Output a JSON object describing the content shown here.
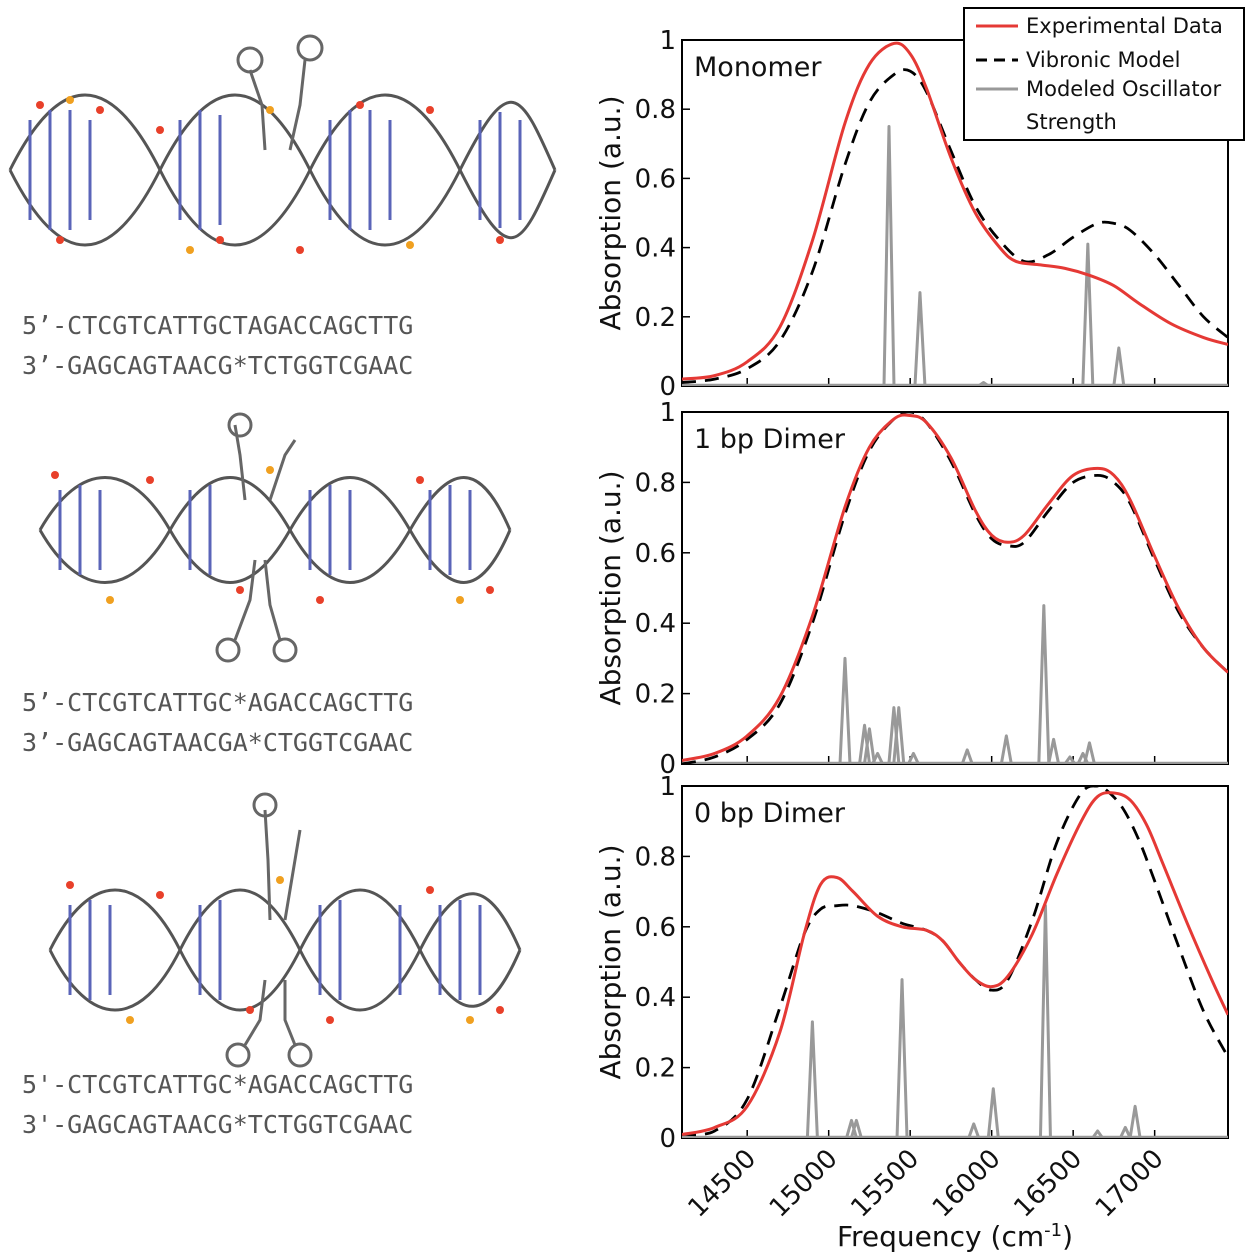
{
  "sequences": [
    {
      "line1": "5’-CTCGTCATTGCTAGACCAGCTTG",
      "line2": "3’-GAGCAGTAACG*TCTGGTCGAAC"
    },
    {
      "line1": "5’-CTCGTCATTGC*AGACCAGCTTG",
      "line2": "3’-GAGCAGTAACGA*CTGGTCGAAC"
    },
    {
      "line1": "5'-CTCGTCATTGC*AGACCAGCTTG",
      "line2": "3'-GAGCAGTAACG*TCTGGTCGAAC"
    }
  ],
  "legend": {
    "experimental": "Experimental Data",
    "vibronic": "Vibronic Model",
    "oscillator_line1": "Modeled Oscillator",
    "oscillator_line2": "Strength"
  },
  "colors": {
    "experimental": "#e53935",
    "vibronic": "#000000",
    "oscillator": "#999999"
  },
  "chart_data": {
    "type": "line",
    "xlabel_main": "Frequency (cm",
    "xlabel_sup": "-1",
    "xlabel_end": ")",
    "ylabel": "Absorption (a.u.)",
    "xlim": [
      14100,
      17450
    ],
    "ylim": [
      0,
      1.0
    ],
    "x_ticks": [
      14500,
      15000,
      15500,
      16000,
      16500,
      17000
    ],
    "x_tick_labels": [
      "14500",
      "15000",
      "15500",
      "16000",
      "16500",
      "17000"
    ],
    "y_ticks": [
      0,
      0.2,
      0.4,
      0.6,
      0.8,
      1
    ],
    "y_tick_labels": [
      "0",
      "0.2",
      "0.4",
      "0.6",
      "0.8",
      "1"
    ],
    "panels": [
      {
        "label": "Monomer",
        "series": [
          {
            "name": "Experimental Data",
            "x": [
              14100,
              14300,
              14500,
              14700,
              14900,
              15100,
              15250,
              15400,
              15500,
              15600,
              15750,
              15900,
              16050,
              16150,
              16300,
              16450,
              16600,
              16750,
              16900,
              17100,
              17300,
              17450
            ],
            "y": [
              0.02,
              0.03,
              0.07,
              0.17,
              0.42,
              0.76,
              0.93,
              0.99,
              0.96,
              0.86,
              0.66,
              0.5,
              0.4,
              0.36,
              0.35,
              0.34,
              0.32,
              0.29,
              0.24,
              0.18,
              0.14,
              0.12
            ]
          },
          {
            "name": "Vibronic Model",
            "x": [
              14100,
              14300,
              14500,
              14700,
              14900,
              15100,
              15250,
              15400,
              15500,
              15600,
              15750,
              15900,
              16050,
              16200,
              16350,
              16500,
              16650,
              16750,
              16850,
              17000,
              17150,
              17300,
              17450
            ],
            "y": [
              0.01,
              0.02,
              0.05,
              0.13,
              0.33,
              0.64,
              0.82,
              0.9,
              0.91,
              0.85,
              0.68,
              0.52,
              0.42,
              0.36,
              0.38,
              0.43,
              0.47,
              0.47,
              0.45,
              0.38,
              0.29,
              0.2,
              0.14
            ]
          },
          {
            "name": "Modeled Oscillator Strength",
            "type": "stick",
            "x": [
              15370,
              15560,
              15950,
              16590,
              16780
            ],
            "y": [
              0.75,
              0.27,
              0.01,
              0.41,
              0.11
            ]
          }
        ]
      },
      {
        "label": "1 bp Dimer",
        "series": [
          {
            "name": "Experimental Data",
            "x": [
              14100,
              14300,
              14500,
              14700,
              14900,
              15100,
              15250,
              15400,
              15500,
              15600,
              15750,
              15900,
              16000,
              16100,
              16200,
              16350,
              16500,
              16650,
              16750,
              16850,
              17000,
              17150,
              17300,
              17450
            ],
            "y": [
              0.01,
              0.03,
              0.08,
              0.19,
              0.42,
              0.73,
              0.9,
              0.98,
              0.99,
              0.97,
              0.87,
              0.72,
              0.65,
              0.63,
              0.65,
              0.74,
              0.82,
              0.84,
              0.82,
              0.75,
              0.59,
              0.44,
              0.33,
              0.26
            ]
          },
          {
            "name": "Vibronic Model",
            "x": [
              14100,
              14300,
              14500,
              14700,
              14900,
              15100,
              15250,
              15400,
              15500,
              15600,
              15750,
              15900,
              16000,
              16100,
              16200,
              16350,
              16500,
              16650,
              16750,
              16850,
              17000,
              17150,
              17300,
              17450
            ],
            "y": [
              0.0,
              0.02,
              0.07,
              0.17,
              0.4,
              0.71,
              0.89,
              0.98,
              1.0,
              0.97,
              0.86,
              0.71,
              0.64,
              0.62,
              0.63,
              0.72,
              0.8,
              0.82,
              0.8,
              0.74,
              0.58,
              0.43,
              0.33,
              0.26
            ]
          },
          {
            "name": "Modeled Oscillator Strength",
            "type": "stick",
            "x": [
              15100,
              15220,
              15250,
              15300,
              15400,
              15430,
              15520,
              15850,
              16090,
              16320,
              16380,
              16480,
              16560,
              16600
            ],
            "y": [
              0.3,
              0.11,
              0.1,
              0.03,
              0.16,
              0.16,
              0.03,
              0.04,
              0.08,
              0.45,
              0.07,
              0.02,
              0.03,
              0.06
            ]
          }
        ]
      },
      {
        "label": "0 bp Dimer",
        "series": [
          {
            "name": "Experimental Data",
            "x": [
              14100,
              14300,
              14500,
              14700,
              14850,
              14950,
              15050,
              15150,
              15300,
              15450,
              15600,
              15700,
              15800,
              15900,
              16000,
              16100,
              16250,
              16400,
              16550,
              16650,
              16750,
              16850,
              16950,
              17050,
              17200,
              17350,
              17450
            ],
            "y": [
              0.01,
              0.03,
              0.09,
              0.3,
              0.58,
              0.72,
              0.74,
              0.7,
              0.63,
              0.6,
              0.59,
              0.56,
              0.5,
              0.45,
              0.43,
              0.46,
              0.58,
              0.75,
              0.9,
              0.97,
              0.98,
              0.96,
              0.89,
              0.78,
              0.61,
              0.45,
              0.35
            ]
          },
          {
            "name": "Vibronic Model",
            "x": [
              14100,
              14300,
              14500,
              14700,
              14850,
              14950,
              15050,
              15150,
              15300,
              15450,
              15600,
              15700,
              15800,
              15900,
              16000,
              16100,
              16250,
              16400,
              16550,
              16650,
              16700,
              16800,
              16900,
              17000,
              17150,
              17300,
              17450
            ],
            "y": [
              0.01,
              0.02,
              0.11,
              0.37,
              0.58,
              0.65,
              0.66,
              0.66,
              0.64,
              0.61,
              0.59,
              0.56,
              0.5,
              0.45,
              0.42,
              0.45,
              0.62,
              0.84,
              0.98,
              1.0,
              0.99,
              0.94,
              0.85,
              0.73,
              0.54,
              0.36,
              0.23
            ]
          },
          {
            "name": "Modeled Oscillator Strength",
            "type": "stick",
            "x": [
              14900,
              15140,
              15170,
              15450,
              15890,
              16010,
              16330,
              16650,
              16820,
              16880
            ],
            "y": [
              0.33,
              0.05,
              0.05,
              0.45,
              0.04,
              0.14,
              0.66,
              0.02,
              0.03,
              0.09
            ]
          }
        ]
      }
    ]
  }
}
